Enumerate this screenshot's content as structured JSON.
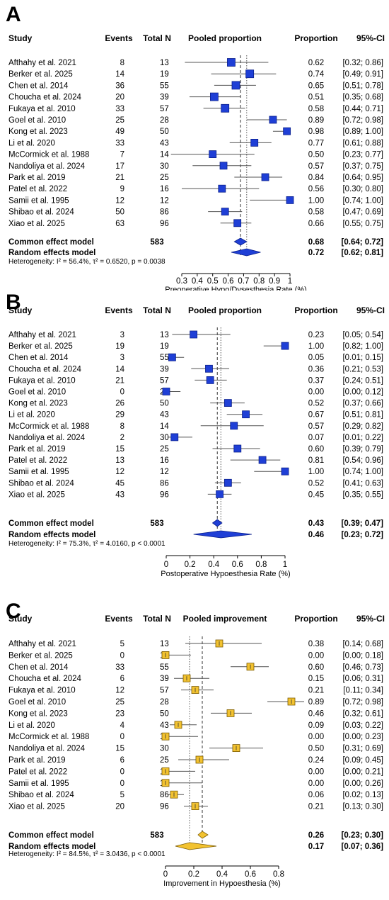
{
  "chart_data": [
    {
      "type": "forest",
      "panel_label": "A",
      "headers": {
        "study": "Study",
        "events": "Events",
        "total": "Total N",
        "pooled": "Pooled proportion",
        "proportion": "Proportion",
        "ci": "95%-CI"
      },
      "studies": [
        {
          "name": "Afthahy et al. 2021",
          "events": "8",
          "total": "13",
          "value": 0.62,
          "lo": 0.32,
          "hi": 0.86,
          "prop": "0.62",
          "ci": "[0.32; 0.86]"
        },
        {
          "name": "Berker et al. 2025",
          "events": "14",
          "total": "19",
          "value": 0.74,
          "lo": 0.49,
          "hi": 0.91,
          "prop": "0.74",
          "ci": "[0.49; 0.91]"
        },
        {
          "name": "Chen et al. 2014",
          "events": "36",
          "total": "55",
          "value": 0.65,
          "lo": 0.51,
          "hi": 0.78,
          "prop": "0.65",
          "ci": "[0.51; 0.78]"
        },
        {
          "name": "Choucha et al. 2024",
          "events": "20",
          "total": "39",
          "value": 0.51,
          "lo": 0.35,
          "hi": 0.68,
          "prop": "0.51",
          "ci": "[0.35; 0.68]"
        },
        {
          "name": "Fukaya et al. 2010",
          "events": "33",
          "total": "57",
          "value": 0.58,
          "lo": 0.44,
          "hi": 0.71,
          "prop": "0.58",
          "ci": "[0.44; 0.71]"
        },
        {
          "name": "Goel et al. 2010",
          "events": "25",
          "total": "28",
          "value": 0.89,
          "lo": 0.72,
          "hi": 0.98,
          "prop": "0.89",
          "ci": "[0.72; 0.98]"
        },
        {
          "name": "Kong et al. 2023",
          "events": "49",
          "total": "50",
          "value": 0.98,
          "lo": 0.89,
          "hi": 1.0,
          "prop": "0.98",
          "ci": "[0.89; 1.00]"
        },
        {
          "name": "Li et al. 2020",
          "events": "33",
          "total": "43",
          "value": 0.77,
          "lo": 0.61,
          "hi": 0.88,
          "prop": "0.77",
          "ci": "[0.61; 0.88]"
        },
        {
          "name": "McCormick et al. 1988",
          "events": "7",
          "total": "14",
          "value": 0.5,
          "lo": 0.23,
          "hi": 0.77,
          "prop": "0.50",
          "ci": "[0.23; 0.77]"
        },
        {
          "name": "Nandoliya et al. 2024",
          "events": "17",
          "total": "30",
          "value": 0.57,
          "lo": 0.37,
          "hi": 0.75,
          "prop": "0.57",
          "ci": "[0.37; 0.75]"
        },
        {
          "name": "Park et al. 2019",
          "events": "21",
          "total": "25",
          "value": 0.84,
          "lo": 0.64,
          "hi": 0.95,
          "prop": "0.84",
          "ci": "[0.64; 0.95]"
        },
        {
          "name": "Patel et al. 2022",
          "events": "9",
          "total": "16",
          "value": 0.56,
          "lo": 0.3,
          "hi": 0.8,
          "prop": "0.56",
          "ci": "[0.30; 0.80]"
        },
        {
          "name": "Samii et al. 1995",
          "events": "12",
          "total": "12",
          "value": 1.0,
          "lo": 0.74,
          "hi": 1.0,
          "prop": "1.00",
          "ci": "[0.74; 1.00]"
        },
        {
          "name": "Shibao et al. 2024",
          "events": "50",
          "total": "86",
          "value": 0.58,
          "lo": 0.47,
          "hi": 0.69,
          "prop": "0.58",
          "ci": "[0.47; 0.69]"
        },
        {
          "name": "Xiao et al. 2025",
          "events": "63",
          "total": "96",
          "value": 0.66,
          "lo": 0.55,
          "hi": 0.75,
          "prop": "0.66",
          "ci": "[0.55; 0.75]"
        }
      ],
      "common": {
        "label": "Common effect model",
        "total": "583",
        "value": 0.68,
        "lo": 0.64,
        "hi": 0.72,
        "prop": "0.68",
        "ci": "[0.64; 0.72]"
      },
      "random": {
        "label": "Random effects model",
        "value": 0.72,
        "lo": 0.62,
        "hi": 0.81,
        "prop": "0.72",
        "ci": "[0.62; 0.81]"
      },
      "heterogeneity": "Heterogeneity: I² = 56.4%, τ² = 0.6520, p = 0.0038",
      "xticks": [
        0.3,
        0.4,
        0.5,
        0.6,
        0.7,
        0.8,
        0.9,
        1
      ],
      "xtick_labels": [
        "0.3",
        "0.4",
        "0.5",
        "0.6",
        "0.7",
        "0.8",
        "0.9",
        "1"
      ],
      "xlim": [
        0.3,
        1
      ],
      "xlabel": "Preoperative Hypo/Dysesthesia Rate (%)",
      "marker_color": "#1f3fd6",
      "marker_stroke": "#0a1f8a"
    },
    {
      "type": "forest",
      "panel_label": "B",
      "headers": {
        "study": "Study",
        "events": "Events",
        "total": "Total N",
        "pooled": "Pooled proportion",
        "proportion": "Proportion",
        "ci": "95%-CI"
      },
      "studies": [
        {
          "name": "Afthahy et al. 2021",
          "events": "3",
          "total": "13",
          "value": 0.23,
          "lo": 0.05,
          "hi": 0.54,
          "prop": "0.23",
          "ci": "[0.05; 0.54]"
        },
        {
          "name": "Berker et al. 2025",
          "events": "19",
          "total": "19",
          "value": 1.0,
          "lo": 0.82,
          "hi": 1.0,
          "prop": "1.00",
          "ci": "[0.82; 1.00]"
        },
        {
          "name": "Chen et al. 2014",
          "events": "3",
          "total": "55",
          "value": 0.05,
          "lo": 0.01,
          "hi": 0.15,
          "prop": "0.05",
          "ci": "[0.01; 0.15]"
        },
        {
          "name": "Choucha et al. 2024",
          "events": "14",
          "total": "39",
          "value": 0.36,
          "lo": 0.21,
          "hi": 0.53,
          "prop": "0.36",
          "ci": "[0.21; 0.53]"
        },
        {
          "name": "Fukaya et al. 2010",
          "events": "21",
          "total": "57",
          "value": 0.37,
          "lo": 0.24,
          "hi": 0.51,
          "prop": "0.37",
          "ci": "[0.24; 0.51]"
        },
        {
          "name": "Goel et al. 2010",
          "events": "0",
          "total": "28",
          "value": 0.0,
          "lo": 0.0,
          "hi": 0.12,
          "prop": "0.00",
          "ci": "[0.00; 0.12]"
        },
        {
          "name": "Kong et al. 2023",
          "events": "26",
          "total": "50",
          "value": 0.52,
          "lo": 0.37,
          "hi": 0.66,
          "prop": "0.52",
          "ci": "[0.37; 0.66]"
        },
        {
          "name": "Li et al. 2020",
          "events": "29",
          "total": "43",
          "value": 0.67,
          "lo": 0.51,
          "hi": 0.81,
          "prop": "0.67",
          "ci": "[0.51; 0.81]"
        },
        {
          "name": "McCormick et al. 1988",
          "events": "8",
          "total": "14",
          "value": 0.57,
          "lo": 0.29,
          "hi": 0.82,
          "prop": "0.57",
          "ci": "[0.29; 0.82]"
        },
        {
          "name": "Nandoliya et al. 2024",
          "events": "2",
          "total": "30",
          "value": 0.07,
          "lo": 0.01,
          "hi": 0.22,
          "prop": "0.07",
          "ci": "[0.01; 0.22]"
        },
        {
          "name": "Park et al. 2019",
          "events": "15",
          "total": "25",
          "value": 0.6,
          "lo": 0.39,
          "hi": 0.79,
          "prop": "0.60",
          "ci": "[0.39; 0.79]"
        },
        {
          "name": "Patel et al. 2022",
          "events": "13",
          "total": "16",
          "value": 0.81,
          "lo": 0.54,
          "hi": 0.96,
          "prop": "0.81",
          "ci": "[0.54; 0.96]"
        },
        {
          "name": "Samii et al. 1995",
          "events": "12",
          "total": "12",
          "value": 1.0,
          "lo": 0.74,
          "hi": 1.0,
          "prop": "1.00",
          "ci": "[0.74; 1.00]"
        },
        {
          "name": "Shibao et al. 2024",
          "events": "45",
          "total": "86",
          "value": 0.52,
          "lo": 0.41,
          "hi": 0.63,
          "prop": "0.52",
          "ci": "[0.41; 0.63]"
        },
        {
          "name": "Xiao et al. 2025",
          "events": "43",
          "total": "96",
          "value": 0.45,
          "lo": 0.35,
          "hi": 0.55,
          "prop": "0.45",
          "ci": "[0.35; 0.55]"
        }
      ],
      "common": {
        "label": "Common effect model",
        "total": "583",
        "value": 0.43,
        "lo": 0.39,
        "hi": 0.47,
        "prop": "0.43",
        "ci": "[0.39; 0.47]"
      },
      "random": {
        "label": "Random effects model",
        "value": 0.46,
        "lo": 0.23,
        "hi": 0.72,
        "prop": "0.46",
        "ci": "[0.23; 0.72]"
      },
      "heterogeneity": "Heterogeneity: I² = 75.3%, τ² = 4.0160, p < 0.0001",
      "xticks": [
        0,
        0.2,
        0.4,
        0.6,
        0.8,
        1
      ],
      "xtick_labels": [
        "0",
        "0.2",
        "0.4",
        "0.6",
        "0.8",
        "1"
      ],
      "xlim": [
        0,
        1
      ],
      "xlabel": "Postoperative Hypoesthesia Rate (%)",
      "marker_color": "#1f3fd6",
      "marker_stroke": "#0a1f8a"
    },
    {
      "type": "forest",
      "panel_label": "C",
      "headers": {
        "study": "Study",
        "events": "Events",
        "total": "Total N",
        "pooled": "Pooled improvement",
        "proportion": "Proportion",
        "ci": "95%-CI"
      },
      "studies": [
        {
          "name": "Afthahy et al. 2021",
          "events": "5",
          "total": "13",
          "value": 0.38,
          "lo": 0.14,
          "hi": 0.68,
          "prop": "0.38",
          "ci": "[0.14; 0.68]"
        },
        {
          "name": "Berker et al. 2025",
          "events": "0",
          "total": "19",
          "value": 0.0,
          "lo": 0.0,
          "hi": 0.18,
          "prop": "0.00",
          "ci": "[0.00; 0.18]"
        },
        {
          "name": "Chen et al. 2014",
          "events": "33",
          "total": "55",
          "value": 0.6,
          "lo": 0.46,
          "hi": 0.73,
          "prop": "0.60",
          "ci": "[0.46; 0.73]"
        },
        {
          "name": "Choucha et al. 2024",
          "events": "6",
          "total": "39",
          "value": 0.15,
          "lo": 0.06,
          "hi": 0.31,
          "prop": "0.15",
          "ci": "[0.06; 0.31]"
        },
        {
          "name": "Fukaya et al. 2010",
          "events": "12",
          "total": "57",
          "value": 0.21,
          "lo": 0.11,
          "hi": 0.34,
          "prop": "0.21",
          "ci": "[0.11; 0.34]"
        },
        {
          "name": "Goel et al. 2010",
          "events": "25",
          "total": "28",
          "value": 0.89,
          "lo": 0.72,
          "hi": 0.98,
          "prop": "0.89",
          "ci": "[0.72; 0.98]"
        },
        {
          "name": "Kong et al. 2023",
          "events": "23",
          "total": "50",
          "value": 0.46,
          "lo": 0.32,
          "hi": 0.61,
          "prop": "0.46",
          "ci": "[0.32; 0.61]"
        },
        {
          "name": "Li et al. 2020",
          "events": "4",
          "total": "43",
          "value": 0.09,
          "lo": 0.03,
          "hi": 0.22,
          "prop": "0.09",
          "ci": "[0.03; 0.22]"
        },
        {
          "name": "McCormick et al. 1988",
          "events": "0",
          "total": "14",
          "value": 0.0,
          "lo": 0.0,
          "hi": 0.23,
          "prop": "0.00",
          "ci": "[0.00; 0.23]"
        },
        {
          "name": "Nandoliya et al. 2024",
          "events": "15",
          "total": "30",
          "value": 0.5,
          "lo": 0.31,
          "hi": 0.69,
          "prop": "0.50",
          "ci": "[0.31; 0.69]"
        },
        {
          "name": "Park et al. 2019",
          "events": "6",
          "total": "25",
          "value": 0.24,
          "lo": 0.09,
          "hi": 0.45,
          "prop": "0.24",
          "ci": "[0.09; 0.45]"
        },
        {
          "name": "Patel et al. 2022",
          "events": "0",
          "total": "16",
          "value": 0.0,
          "lo": 0.0,
          "hi": 0.21,
          "prop": "0.00",
          "ci": "[0.00; 0.21]"
        },
        {
          "name": "Samii et al. 1995",
          "events": "0",
          "total": "12",
          "value": 0.0,
          "lo": 0.0,
          "hi": 0.26,
          "prop": "0.00",
          "ci": "[0.00; 0.26]"
        },
        {
          "name": "Shibao et al. 2024",
          "events": "5",
          "total": "86",
          "value": 0.06,
          "lo": 0.02,
          "hi": 0.13,
          "prop": "0.06",
          "ci": "[0.02; 0.13]"
        },
        {
          "name": "Xiao et al. 2025",
          "events": "20",
          "total": "96",
          "value": 0.21,
          "lo": 0.13,
          "hi": 0.3,
          "prop": "0.21",
          "ci": "[0.13; 0.30]"
        }
      ],
      "common": {
        "label": "Common effect model",
        "total": "583",
        "value": 0.26,
        "lo": 0.23,
        "hi": 0.3,
        "prop": "0.26",
        "ci": "[0.23; 0.30]"
      },
      "random": {
        "label": "Random effects model",
        "value": 0.17,
        "lo": 0.07,
        "hi": 0.36,
        "prop": "0.17",
        "ci": "[0.07; 0.36]"
      },
      "heterogeneity": "Heterogeneity: I² = 84.5%, τ² = 3.0436, p < 0.0001",
      "xticks": [
        0,
        0.2,
        0.4,
        0.6,
        0.8
      ],
      "xtick_labels": [
        "0",
        "0.2",
        "0.4",
        "0.6",
        "0.8"
      ],
      "xlim": [
        0,
        0.9
      ],
      "xlabel": "Improvement in Hypoesthesia (%)",
      "marker_color": "#f2c230",
      "marker_stroke": "#7a5a00"
    }
  ]
}
